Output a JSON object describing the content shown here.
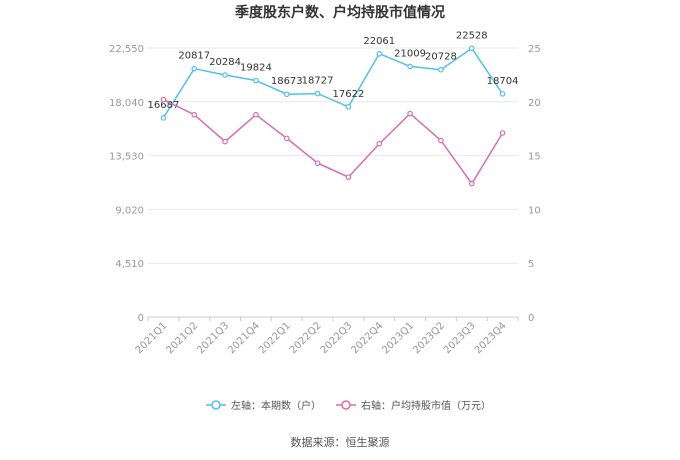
{
  "chart_data": {
    "type": "line",
    "title": "季度股东户数、户均持股市值情况",
    "categories": [
      "2021Q1",
      "2021Q2",
      "2021Q3",
      "2021Q4",
      "2022Q1",
      "2022Q2",
      "2022Q3",
      "2022Q4",
      "2023Q1",
      "2023Q2",
      "2023Q3",
      "2023Q4"
    ],
    "series": [
      {
        "name": "左轴：本期数（户）",
        "axis": "left",
        "color": "#4fc1e9",
        "values": [
          16687,
          20817,
          20284,
          19824,
          18673,
          18727,
          17622,
          22061,
          21009,
          20728,
          22528,
          18704
        ],
        "labels": [
          "16687",
          "20817",
          "20284",
          "19824",
          "18673",
          "18727",
          "17622",
          "22061",
          "21009",
          "20728",
          "22528",
          "18704"
        ]
      },
      {
        "name": "右轴：户均持股市值（万元）",
        "axis": "right",
        "color": "#d66db1",
        "values": [
          20.2,
          18.8,
          16.3,
          18.8,
          16.6,
          14.3,
          13.0,
          16.1,
          18.9,
          16.4,
          12.4,
          17.1
        ]
      }
    ],
    "left_axis": {
      "ticks": [
        "0",
        "4,510",
        "9,020",
        "13,530",
        "18,040",
        "22,550"
      ],
      "ylim": [
        0,
        22550
      ]
    },
    "right_axis": {
      "ticks": [
        "0",
        "5",
        "10",
        "15",
        "20",
        "25"
      ],
      "ylim": [
        0,
        25
      ]
    },
    "legend_position": "bottom",
    "grid": true
  },
  "footer": {
    "source": "数据来源：恒生聚源"
  }
}
